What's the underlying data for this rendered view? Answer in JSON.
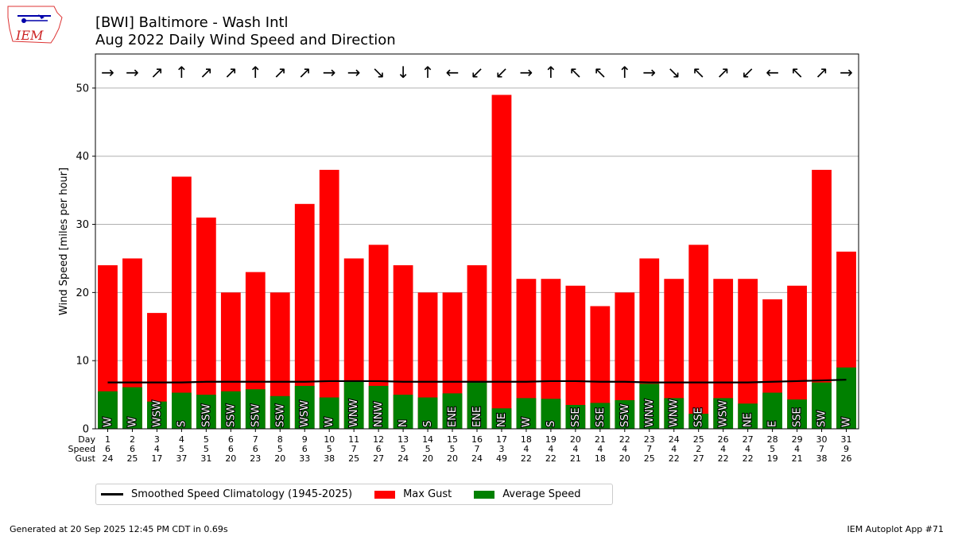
{
  "title_line1": "[BWI] Baltimore - Wash Intl",
  "title_line2": "Aug 2022 Daily Wind Speed and Direction",
  "logo_text": "IEM",
  "footer_left": "Generated at 20 Sep 2025 12:45 PM CDT in 0.69s",
  "footer_right": "IEM Autoplot App #71",
  "legend": {
    "climatology": "Smoothed Speed Climatology (1945-2025)",
    "gust": "Max Gust",
    "avg": "Average Speed"
  },
  "colors": {
    "gust": "#ff0000",
    "avg": "#008000",
    "climatology": "#000000"
  },
  "chart_data": {
    "type": "bar",
    "ylabel": "Wind Speed [miles per hour]",
    "ylim": [
      0,
      55
    ],
    "yticks": [
      0,
      10,
      20,
      30,
      40,
      50
    ],
    "grid": true,
    "legend_position": "bottom",
    "row_labels": [
      "Day",
      "Speed",
      "Gust"
    ],
    "days": [
      1,
      2,
      3,
      4,
      5,
      6,
      7,
      8,
      9,
      10,
      11,
      12,
      13,
      14,
      15,
      16,
      17,
      18,
      19,
      20,
      21,
      22,
      23,
      24,
      25,
      26,
      27,
      28,
      29,
      30,
      31
    ],
    "speed_labels": [
      6,
      6,
      4,
      5,
      5,
      6,
      6,
      5,
      6,
      5,
      7,
      6,
      5,
      5,
      5,
      7,
      3,
      4,
      4,
      4,
      4,
      4,
      7,
      4,
      2,
      4,
      4,
      5,
      4,
      7,
      9
    ],
    "gust_labels": [
      24,
      25,
      17,
      37,
      31,
      20,
      23,
      20,
      33,
      38,
      25,
      27,
      24,
      20,
      20,
      24,
      49,
      22,
      22,
      21,
      18,
      20,
      25,
      22,
      27,
      22,
      22,
      19,
      21,
      38,
      26
    ],
    "avg_speed": [
      5.5,
      6.1,
      4.0,
      5.3,
      5.0,
      5.5,
      5.8,
      4.8,
      6.3,
      4.6,
      7.0,
      6.3,
      5.0,
      4.6,
      5.2,
      6.8,
      3.0,
      4.5,
      4.4,
      3.5,
      3.8,
      4.2,
      6.6,
      4.5,
      2.2,
      4.5,
      3.7,
      5.3,
      4.3,
      6.8,
      9.0
    ],
    "max_gust": [
      24,
      25,
      17,
      37,
      31,
      20,
      23,
      20,
      33,
      38,
      25,
      27,
      24,
      20,
      20,
      24,
      49,
      22,
      22,
      21,
      18,
      20,
      25,
      22,
      27,
      22,
      22,
      19,
      21,
      38,
      26
    ],
    "direction": [
      "W",
      "W",
      "WSW",
      "S",
      "SSW",
      "SSW",
      "SSW",
      "SSW",
      "WSW",
      "W",
      "WNW",
      "NNW",
      "N",
      "S",
      "ENE",
      "ENE",
      "NE",
      "W",
      "S",
      "SSE",
      "SSE",
      "SSW",
      "WNW",
      "WNW",
      "SSE",
      "WSW",
      "NE",
      "E",
      "SSE",
      "SW",
      "W"
    ],
    "arrows": [
      "→",
      "→",
      "↗",
      "↑",
      "↗",
      "↗",
      "↑",
      "↗",
      "↗",
      "→",
      "→",
      "↘",
      "↓",
      "↑",
      "←",
      "↙",
      "↙",
      "→",
      "↑",
      "↖",
      "↖",
      "↑",
      "→",
      "↘",
      "↖",
      "↗",
      "↙",
      "←",
      "↖",
      "↗",
      "→"
    ],
    "climatology": [
      6.8,
      6.8,
      6.8,
      6.8,
      6.9,
      6.9,
      6.9,
      6.9,
      6.9,
      7.0,
      7.0,
      7.0,
      6.9,
      6.9,
      6.9,
      6.9,
      6.9,
      6.9,
      7.0,
      7.0,
      6.9,
      6.9,
      6.8,
      6.8,
      6.8,
      6.8,
      6.8,
      6.9,
      7.0,
      7.1,
      7.2
    ]
  }
}
